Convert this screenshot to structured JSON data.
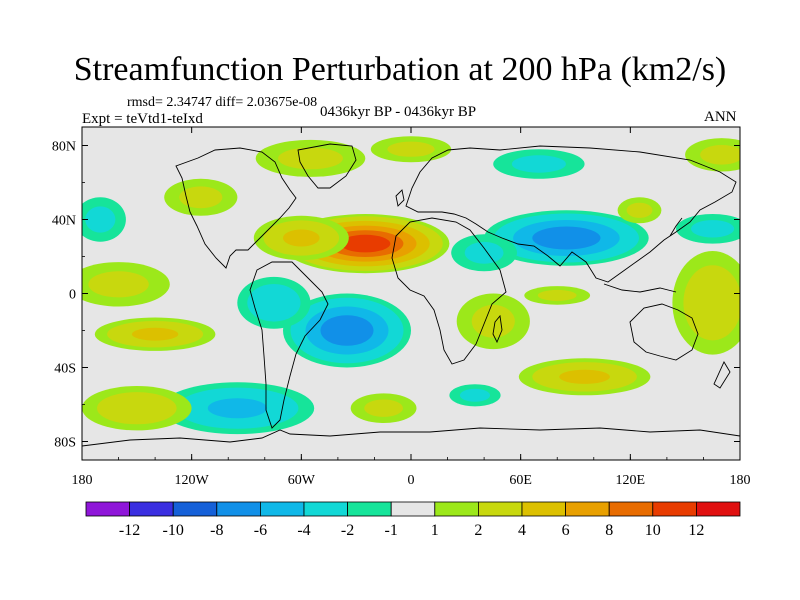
{
  "chart_data": {
    "type": "heatmap",
    "title": "Streamfunction Perturbation at 200 hPa (km2/s)",
    "stats": "rmsd= 2.34747  diff= 2.03675e-08",
    "experiment": "Expt = teVtd1-teIxd",
    "period": "0436kyr BP - 0436kyr BP",
    "season": "ANN",
    "xlim": [
      -180,
      180
    ],
    "ylim": [
      -90,
      90
    ],
    "x_ticks": [
      {
        "value": -180,
        "label": "180"
      },
      {
        "value": -120,
        "label": "120W"
      },
      {
        "value": -60,
        "label": "60W"
      },
      {
        "value": 0,
        "label": "0"
      },
      {
        "value": 60,
        "label": "60E"
      },
      {
        "value": 120,
        "label": "120E"
      },
      {
        "value": 180,
        "label": "180"
      }
    ],
    "y_ticks": [
      {
        "value": 80,
        "label": "80N"
      },
      {
        "value": 40,
        "label": "40N"
      },
      {
        "value": 0,
        "label": "0"
      },
      {
        "value": -40,
        "label": "40S"
      },
      {
        "value": -80,
        "label": "80S"
      }
    ],
    "colorbar": {
      "colors": [
        "#8f16d9",
        "#3a2ee0",
        "#1560d8",
        "#1190e8",
        "#10b8e8",
        "#12d8d6",
        "#16e49a",
        "#e6e6e6",
        "#9ce81a",
        "#c8d80e",
        "#dcc000",
        "#e8a000",
        "#e86c00",
        "#e83c00",
        "#e01010"
      ],
      "labels": [
        "-12",
        "-10",
        "-8",
        "-6",
        "-4",
        "-2",
        "-1",
        "1",
        "2",
        "4",
        "6",
        "8",
        "10",
        "12"
      ]
    },
    "anomalies": [
      {
        "lon": -25,
        "lat": 27,
        "value": 10.5,
        "rx": 46,
        "ry": 16
      },
      {
        "lon": -60,
        "lat": 30,
        "value": 4,
        "rx": 26,
        "ry": 12
      },
      {
        "lon": -35,
        "lat": -20,
        "value": -7,
        "rx": 35,
        "ry": 20
      },
      {
        "lon": -75,
        "lat": -5,
        "value": -3,
        "rx": 20,
        "ry": 14
      },
      {
        "lon": 85,
        "lat": 30,
        "value": -7,
        "rx": 45,
        "ry": 15
      },
      {
        "lon": 40,
        "lat": 22,
        "value": -2,
        "rx": 18,
        "ry": 10
      },
      {
        "lon": 165,
        "lat": 35,
        "value": -2,
        "rx": 20,
        "ry": 8
      },
      {
        "lon": -95,
        "lat": -62,
        "value": -4,
        "rx": 42,
        "ry": 14
      },
      {
        "lon": -140,
        "lat": -22,
        "value": 4,
        "rx": 33,
        "ry": 9
      },
      {
        "lon": -160,
        "lat": 5,
        "value": 2,
        "rx": 28,
        "ry": 12
      },
      {
        "lon": -150,
        "lat": -62,
        "value": 3,
        "rx": 30,
        "ry": 12
      },
      {
        "lon": 165,
        "lat": -5,
        "value": 3,
        "rx": 22,
        "ry": 28
      },
      {
        "lon": 95,
        "lat": -45,
        "value": 4,
        "rx": 36,
        "ry": 10
      },
      {
        "lon": 45,
        "lat": -15,
        "value": 2,
        "rx": 20,
        "ry": 15
      },
      {
        "lon": -55,
        "lat": 73,
        "value": 2,
        "rx": 30,
        "ry": 10
      },
      {
        "lon": 0,
        "lat": 78,
        "value": 2,
        "rx": 22,
        "ry": 7
      },
      {
        "lon": 70,
        "lat": 70,
        "value": -2,
        "rx": 25,
        "ry": 8
      },
      {
        "lon": -115,
        "lat": 52,
        "value": 2,
        "rx": 20,
        "ry": 10
      },
      {
        "lon": -170,
        "lat": 40,
        "value": -2,
        "rx": 14,
        "ry": 12
      },
      {
        "lon": 170,
        "lat": 75,
        "value": 2,
        "rx": 20,
        "ry": 9
      },
      {
        "lon": 80,
        "lat": -1,
        "value": 2,
        "rx": 18,
        "ry": 5
      },
      {
        "lon": -15,
        "lat": -62,
        "value": 2,
        "rx": 18,
        "ry": 8
      },
      {
        "lon": 35,
        "lat": -55,
        "value": -2,
        "rx": 14,
        "ry": 6
      },
      {
        "lon": 125,
        "lat": 45,
        "value": 2,
        "rx": 12,
        "ry": 7
      }
    ]
  }
}
